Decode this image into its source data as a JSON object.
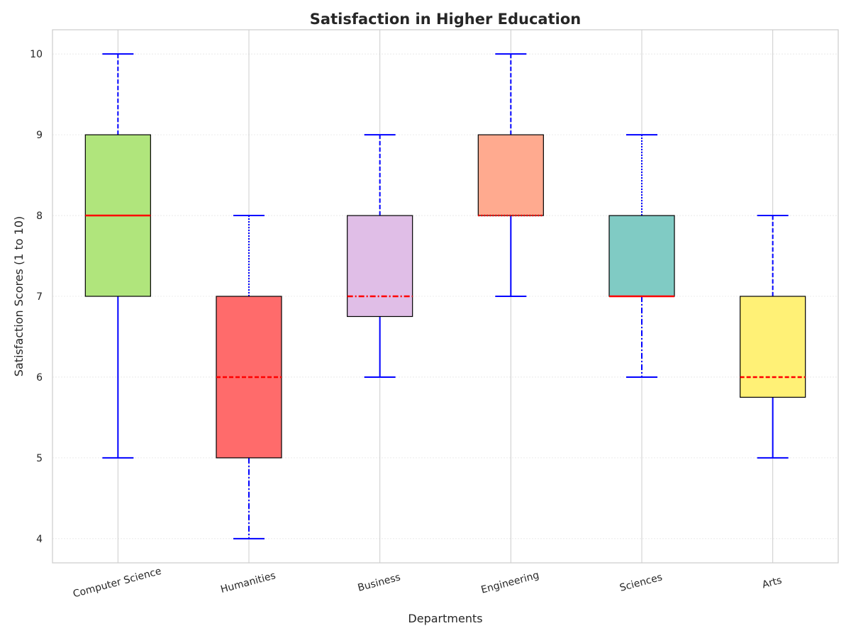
{
  "chart_data": {
    "type": "box",
    "title": "Satisfaction in Higher Education",
    "xlabel": "Departments",
    "ylabel": "Satisfaction Scores (1 to 10)",
    "ylim": [
      3.7,
      10.3
    ],
    "yticks": [
      4,
      5,
      6,
      7,
      8,
      9,
      10
    ],
    "grid": true,
    "categories": [
      "Computer Science",
      "Humanities",
      "Business",
      "Engineering",
      "Sciences",
      "Arts"
    ],
    "boxes": [
      {
        "category": "Computer Science",
        "whisker_low": 5,
        "q1": 7,
        "median": 8,
        "q3": 9,
        "whisker_high": 10,
        "color": "#b0e57c",
        "median_style": "solid",
        "whisker_upper_style": "dashed",
        "whisker_lower_style": "solid"
      },
      {
        "category": "Humanities",
        "whisker_low": 4,
        "q1": 5,
        "median": 6,
        "q3": 7,
        "whisker_high": 8,
        "color": "#ff6b6b",
        "median_style": "dashed",
        "whisker_upper_style": "dotted",
        "whisker_lower_style": "dashdot"
      },
      {
        "category": "Business",
        "whisker_low": 6,
        "q1": 6.75,
        "median": 7,
        "q3": 8,
        "whisker_high": 9,
        "color": "#e0bee7",
        "median_style": "dashdot",
        "whisker_upper_style": "dashed",
        "whisker_lower_style": "solid"
      },
      {
        "category": "Engineering",
        "whisker_low": 7,
        "q1": 8,
        "median": 8,
        "q3": 9,
        "whisker_high": 10,
        "color": "#ffaa8f",
        "median_style": "dotted",
        "whisker_upper_style": "dashed",
        "whisker_lower_style": "solid"
      },
      {
        "category": "Sciences",
        "whisker_low": 6,
        "q1": 7,
        "median": 7,
        "q3": 8,
        "whisker_high": 9,
        "color": "#80cbc4",
        "median_style": "solid",
        "whisker_upper_style": "dotted",
        "whisker_lower_style": "dashdot"
      },
      {
        "category": "Arts",
        "whisker_low": 5,
        "q1": 5.75,
        "median": 6,
        "q3": 7,
        "whisker_high": 8,
        "color": "#fff176",
        "median_style": "dashed",
        "whisker_upper_style": "dashed",
        "whisker_lower_style": "solid"
      }
    ],
    "colors": {
      "whisker": "#0000ff",
      "median": "#ff0000",
      "box_edge": "#000000",
      "frame": "#cccccc",
      "grid_vertical": "#cccccc",
      "grid_horizontal": "#e6e6e6"
    }
  }
}
